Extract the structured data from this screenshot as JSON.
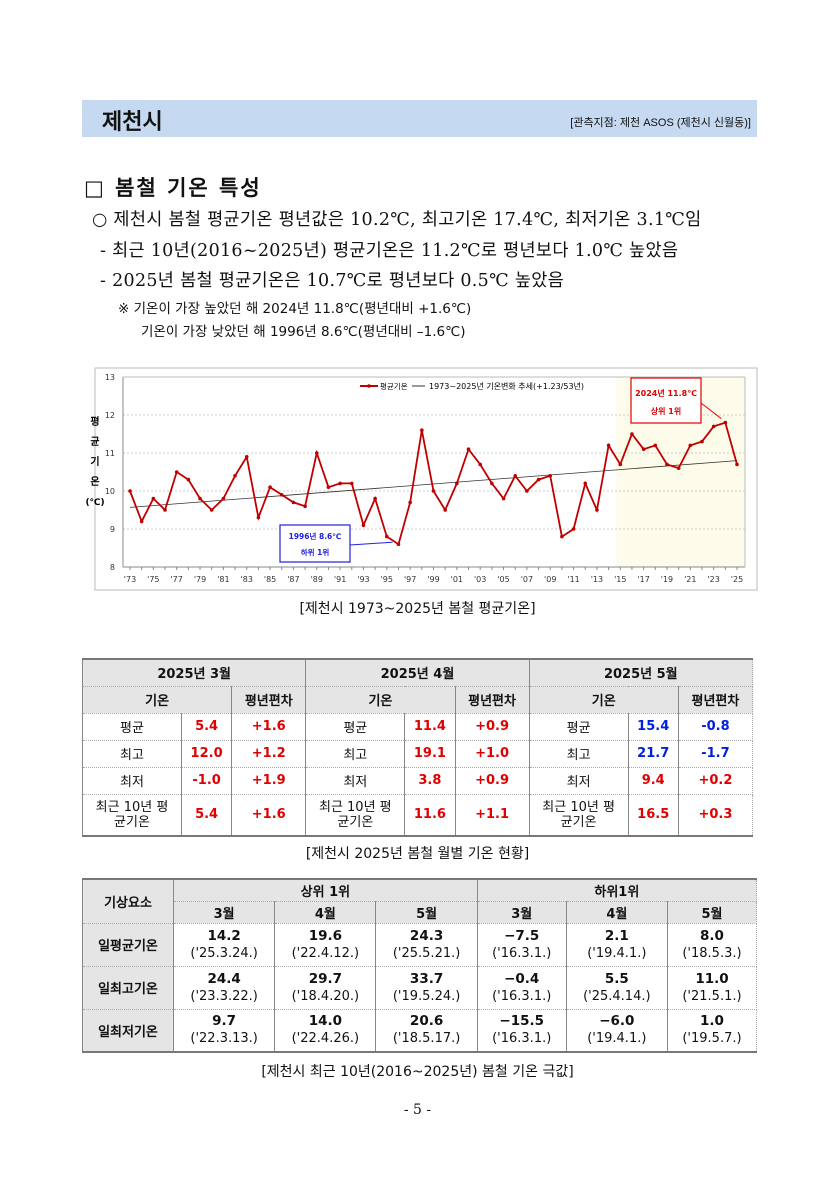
{
  "header": {
    "city": "제천시",
    "station": "[관측지점:  제천  ASOS (제천시  신월동)]"
  },
  "section": {
    "title": "□  봄철  기온  특성",
    "bullets": [
      "○  제천시  봄철  평균기온  평년값은  10.2℃,  최고기온  17.4℃,  최저기온  3.1℃임",
      "-  최근  10년(2016~2025년)  평균기온은  11.2℃로  평년보다  1.0℃  높았음",
      "-  2025년  봄철  평균기온은  10.7℃로  평년보다  0.5℃  높았음"
    ],
    "notes": [
      "※  기온이  가장  높았던  해  2024년  11.8℃(평년대비  +1.6℃)",
      "기온이  가장  낮았던  해  1996년  8.6℃(평년대비  –1.6℃)"
    ]
  },
  "chart_data": {
    "type": "line",
    "title": "",
    "ylabel": "평균기온(℃)",
    "ylabel_chars": [
      "평",
      "균",
      "기",
      "온",
      "(℃)"
    ],
    "ylim": [
      8,
      13
    ],
    "yticks": [
      8,
      9,
      10,
      11,
      12,
      13
    ],
    "x": [
      1973,
      1974,
      1975,
      1976,
      1977,
      1978,
      1979,
      1980,
      1981,
      1982,
      1983,
      1984,
      1985,
      1986,
      1987,
      1988,
      1989,
      1990,
      1991,
      1992,
      1993,
      1994,
      1995,
      1996,
      1997,
      1998,
      1999,
      2000,
      2001,
      2002,
      2003,
      2004,
      2005,
      2006,
      2007,
      2008,
      2009,
      2010,
      2011,
      2012,
      2013,
      2014,
      2015,
      2016,
      2017,
      2018,
      2019,
      2020,
      2021,
      2022,
      2023,
      2024,
      2025
    ],
    "xtick_labels": [
      "'73",
      "'75",
      "'77",
      "'79",
      "'81",
      "'83",
      "'85",
      "'87",
      "'89",
      "'91",
      "'93",
      "'95",
      "'97",
      "'99",
      "'01",
      "'03",
      "'05",
      "'07",
      "'09",
      "'11",
      "'13",
      "'15",
      "'17",
      "'19",
      "'21",
      "'23",
      "'25"
    ],
    "series": [
      {
        "name": "평균기온",
        "color": "#c00000",
        "values": [
          10.0,
          9.2,
          9.8,
          9.5,
          10.5,
          10.3,
          9.8,
          9.5,
          9.8,
          10.4,
          10.9,
          9.3,
          10.1,
          9.9,
          9.7,
          9.6,
          11.0,
          10.1,
          10.2,
          10.2,
          9.1,
          9.8,
          8.8,
          8.6,
          9.7,
          11.6,
          10.0,
          9.5,
          10.2,
          11.1,
          10.7,
          10.2,
          9.8,
          10.4,
          10.0,
          10.3,
          10.4,
          8.8,
          9.0,
          10.2,
          9.5,
          11.2,
          10.7,
          11.5,
          11.1,
          11.2,
          10.7,
          10.6,
          11.2,
          11.3,
          11.7,
          11.8,
          10.7
        ]
      },
      {
        "name": "1973~2025년 기온변화 추세(+1.23/53년)",
        "color": "#333333",
        "trend": [
          9.57,
          10.8
        ]
      }
    ],
    "highlight_range": [
      2015,
      2025
    ],
    "annotations": [
      {
        "text": [
          "2024년 11.8℃",
          "상위 1위"
        ],
        "color": "#e00000",
        "target": [
          2024,
          11.8
        ]
      },
      {
        "text": [
          "1996년 8.6℃",
          "하위 1위"
        ],
        "color": "#2020e0",
        "target": [
          1996,
          8.6
        ]
      }
    ],
    "grid": true,
    "legend": "top-center"
  },
  "chart_caption": "[제천시  1973~2025년  봄철  평균기온]",
  "monthly": {
    "months": [
      "2025년  3월",
      "2025년  4월",
      "2025년  5월"
    ],
    "col_headers": [
      "기온",
      "평년편차"
    ],
    "rows": [
      {
        "label": "평균",
        "cells": [
          [
            "5.4",
            "+1.6"
          ],
          [
            "11.4",
            "+0.9"
          ],
          [
            "15.4",
            "-0.8"
          ]
        ],
        "colors": [
          [
            "red",
            "red"
          ],
          [
            "red",
            "red"
          ],
          [
            "blue",
            "blue"
          ]
        ]
      },
      {
        "label": "최고",
        "cells": [
          [
            "12.0",
            "+1.2"
          ],
          [
            "19.1",
            "+1.0"
          ],
          [
            "21.7",
            "-1.7"
          ]
        ],
        "colors": [
          [
            "red",
            "red"
          ],
          [
            "red",
            "red"
          ],
          [
            "blue",
            "blue"
          ]
        ]
      },
      {
        "label": "최저",
        "cells": [
          [
            "-1.0",
            "+1.9"
          ],
          [
            "3.8",
            "+0.9"
          ],
          [
            "9.4",
            "+0.2"
          ]
        ],
        "colors": [
          [
            "red",
            "red"
          ],
          [
            "red",
            "red"
          ],
          [
            "red",
            "red"
          ]
        ]
      },
      {
        "label": "최근 10년 평균기온",
        "cells": [
          [
            "5.4",
            "+1.6"
          ],
          [
            "11.6",
            "+1.1"
          ],
          [
            "16.5",
            "+0.3"
          ]
        ],
        "colors": [
          [
            "red",
            "red"
          ],
          [
            "red",
            "red"
          ],
          [
            "red",
            "red"
          ]
        ]
      }
    ],
    "caption": "[제천시  2025년  봄철  월별  기온  현황]"
  },
  "extremes": {
    "corner": "기상요소",
    "groups": [
      "상위  1위",
      "하위1위"
    ],
    "months": [
      "3월",
      "4월",
      "5월",
      "3월",
      "4월",
      "5월"
    ],
    "rows": [
      {
        "label": "일평균기온",
        "cells": [
          [
            "14.2",
            "('25.3.24.)"
          ],
          [
            "19.6",
            "('22.4.12.)"
          ],
          [
            "24.3",
            "('25.5.21.)"
          ],
          [
            "−7.5",
            "('16.3.1.)"
          ],
          [
            "2.1",
            "('19.4.1.)"
          ],
          [
            "8.0",
            "('18.5.3.)"
          ]
        ]
      },
      {
        "label": "일최고기온",
        "cells": [
          [
            "24.4",
            "('23.3.22.)"
          ],
          [
            "29.7",
            "('18.4.20.)"
          ],
          [
            "33.7",
            "('19.5.24.)"
          ],
          [
            "−0.4",
            "('16.3.1.)"
          ],
          [
            "5.5",
            "('25.4.14.)"
          ],
          [
            "11.0",
            "('21.5.1.)"
          ]
        ]
      },
      {
        "label": "일최저기온",
        "cells": [
          [
            "9.7",
            "('22.3.13.)"
          ],
          [
            "14.0",
            "('22.4.26.)"
          ],
          [
            "20.6",
            "('18.5.17.)"
          ],
          [
            "−15.5",
            "('16.3.1.)"
          ],
          [
            "−6.0",
            "('19.4.1.)"
          ],
          [
            "1.0",
            "('19.5.7.)"
          ]
        ]
      }
    ],
    "caption": "[제천시  최근  10년(2016~2025년)  봄철  기온  극값]"
  },
  "page_number": "- 5 -"
}
